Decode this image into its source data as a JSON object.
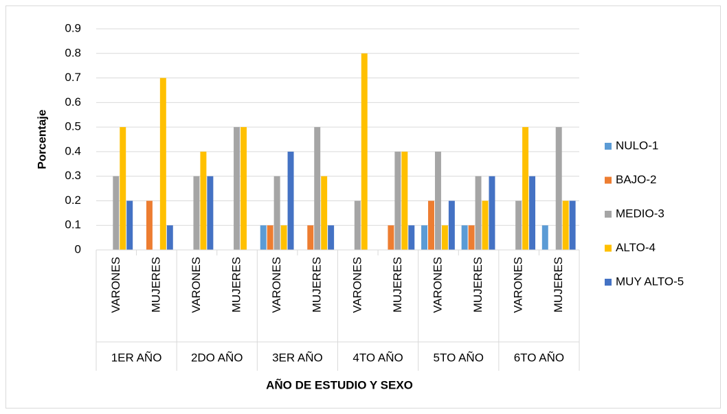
{
  "chart_data": {
    "type": "bar",
    "x_label": "AÑO DE ESTUDIO Y SEXO",
    "y_label": "Porcentaje",
    "categories": [
      "VARONES",
      "MUJERES",
      "VARONES",
      "MUJERES",
      "VARONES",
      "MUJERES",
      "VARONES",
      "MUJERES",
      "VARONES",
      "MUJERES",
      "VARONES",
      "MUJERES"
    ],
    "groups": [
      "1ER AÑO",
      "2DO AÑO",
      "3ER AÑO",
      "4TO AÑO",
      "5TO AÑO",
      "6TO AÑO"
    ],
    "series": [
      {
        "name": "NULO-1",
        "color": "#5b9bd5",
        "values": [
          0,
          0,
          0,
          0,
          0.1,
          0,
          0,
          0,
          0.1,
          0.1,
          0,
          0.1
        ]
      },
      {
        "name": "BAJO-2",
        "color": "#ed7d31",
        "values": [
          0,
          0.2,
          0,
          0,
          0.1,
          0.1,
          0,
          0.1,
          0.2,
          0.1,
          0,
          0
        ]
      },
      {
        "name": "MEDIO-3",
        "color": "#a5a5a5",
        "values": [
          0.3,
          0,
          0.3,
          0.5,
          0.3,
          0.5,
          0.2,
          0.4,
          0.4,
          0.3,
          0.2,
          0.5
        ]
      },
      {
        "name": "ALTO-4",
        "color": "#ffc000",
        "values": [
          0.5,
          0.7,
          0.4,
          0.5,
          0.1,
          0.3,
          0.8,
          0.4,
          0.1,
          0.2,
          0.5,
          0.2
        ]
      },
      {
        "name": "MUY ALTO-5",
        "color": "#4472c4",
        "values": [
          0.2,
          0.1,
          0.3,
          0,
          0.4,
          0.1,
          0,
          0.1,
          0.2,
          0.3,
          0.3,
          0.2
        ]
      }
    ],
    "ylim": [
      0,
      0.9
    ],
    "yticks": [
      0,
      0.1,
      0.2,
      0.3,
      0.4,
      0.5,
      0.6,
      0.7,
      0.8,
      0.9
    ],
    "grid": true,
    "legend": "right"
  }
}
